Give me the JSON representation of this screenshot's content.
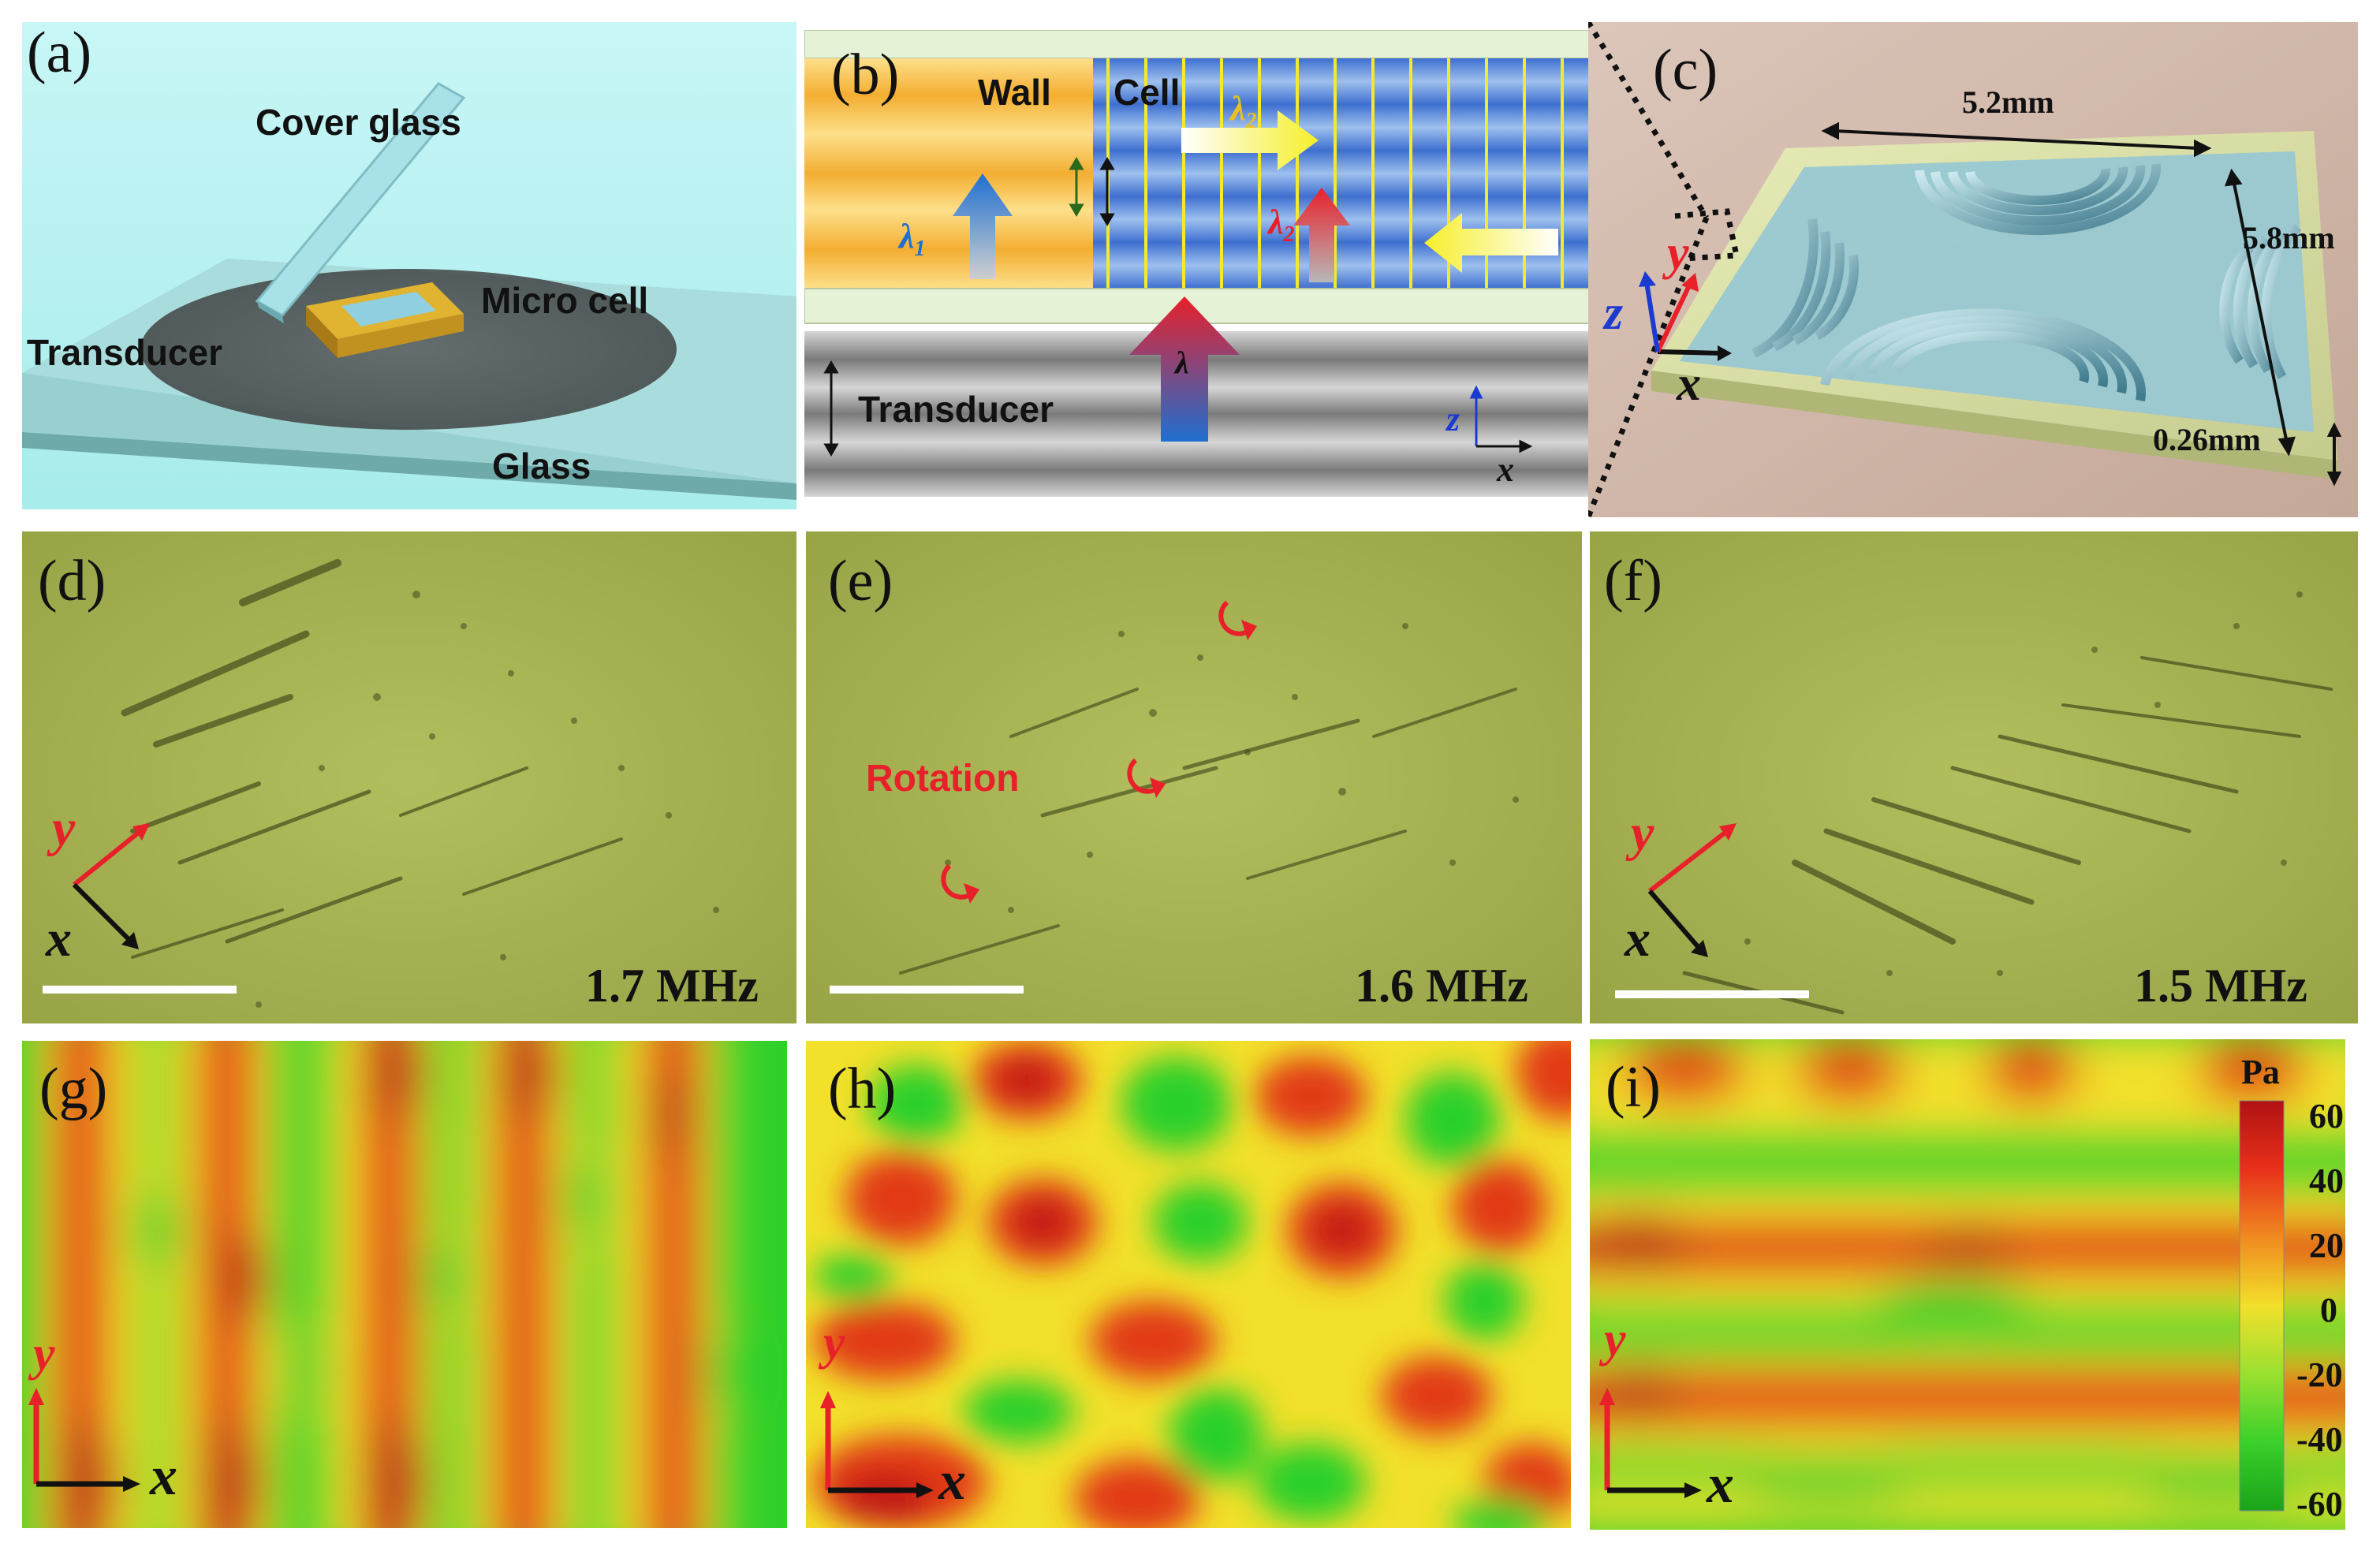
{
  "figure": {
    "panel_labels": [
      "(a)",
      "(b)",
      "(c)",
      "(d)",
      "(e)",
      "(f)",
      "(g)",
      "(h)",
      "(i)"
    ],
    "colors": {
      "sky": "#b7f2f2",
      "glass": "#a6dcdc",
      "cell_gold": "#f6c64a",
      "cell_blue": "#5b84d2",
      "micro_green": "#a6b252",
      "field_red": "#dc2318",
      "field_yellow": "#f2e02a",
      "field_green": "#2ad02a"
    }
  },
  "panel_a": {
    "cover_glass": "Cover glass",
    "micro_cell": "Micro cell",
    "transducer": "Transducer",
    "glass": "Glass"
  },
  "panel_b": {
    "wall": "Wall",
    "cell": "Cell",
    "transducer": "Transducer",
    "lambda": "λ",
    "lambda1": "λ",
    "lambda1_sub": "1",
    "lambda2_top": "λ",
    "lambda2_top_sub": "2",
    "lambda2_mid": "λ",
    "lambda2_mid_sub": "2",
    "axis_z": "z",
    "axis_x": "x"
  },
  "panel_c": {
    "width": "5.2mm",
    "height": "5.8mm",
    "thickness": "0.26mm",
    "axis_x": "x",
    "axis_y": "y",
    "axis_z": "z"
  },
  "panel_d": {
    "frequency": "1.7 MHz",
    "axis_x": "x",
    "axis_y": "y"
  },
  "panel_e": {
    "frequency": "1.6 MHz",
    "rotation": "Rotation"
  },
  "panel_f": {
    "frequency": "1.5 MHz",
    "axis_x": "x",
    "axis_y": "y"
  },
  "panel_g": {
    "axis_x": "x",
    "axis_y": "y"
  },
  "panel_h": {
    "axis_x": "x",
    "axis_y": "y"
  },
  "panel_i": {
    "axis_x": "x",
    "axis_y": "y"
  },
  "colorbar": {
    "unit": "Pa",
    "ticks": [
      "60",
      "40",
      "20",
      "0",
      "-20",
      "-40",
      "-60"
    ],
    "stops": [
      "#b01212",
      "#e8301a",
      "#f08a20",
      "#f2e02a",
      "#9ae030",
      "#3ad02a",
      "#1aa31a"
    ]
  }
}
